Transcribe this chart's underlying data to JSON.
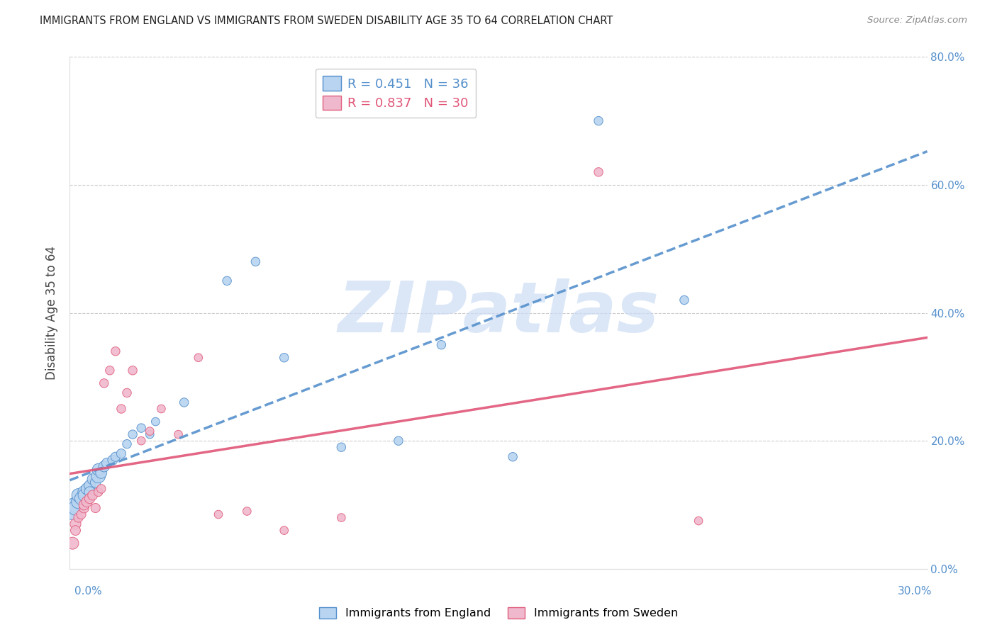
{
  "title": "IMMIGRANTS FROM ENGLAND VS IMMIGRANTS FROM SWEDEN DISABILITY AGE 35 TO 64 CORRELATION CHART",
  "source": "Source: ZipAtlas.com",
  "ylabel_label": "Disability Age 35 to 64",
  "xlim": [
    0.0,
    0.3
  ],
  "ylim": [
    0.0,
    0.8
  ],
  "england_R": 0.451,
  "england_N": 36,
  "sweden_R": 0.837,
  "sweden_N": 30,
  "england_color": "#b8d4f0",
  "sweden_color": "#f0b8cc",
  "england_edge_color": "#5590cc",
  "sweden_edge_color": "#e06080",
  "england_line_color": "#5590cc",
  "sweden_line_color": "#e05578",
  "england_x": [
    0.001,
    0.002,
    0.002,
    0.003,
    0.003,
    0.004,
    0.005,
    0.005,
    0.006,
    0.007,
    0.007,
    0.008,
    0.009,
    0.01,
    0.01,
    0.011,
    0.012,
    0.013,
    0.015,
    0.016,
    0.018,
    0.02,
    0.022,
    0.025,
    0.028,
    0.03,
    0.04,
    0.055,
    0.065,
    0.075,
    0.095,
    0.115,
    0.13,
    0.155,
    0.185,
    0.215
  ],
  "england_y": [
    0.09,
    0.1,
    0.095,
    0.105,
    0.115,
    0.11,
    0.12,
    0.115,
    0.125,
    0.13,
    0.12,
    0.14,
    0.135,
    0.145,
    0.155,
    0.15,
    0.16,
    0.165,
    0.17,
    0.175,
    0.18,
    0.195,
    0.21,
    0.22,
    0.21,
    0.23,
    0.26,
    0.45,
    0.48,
    0.33,
    0.19,
    0.2,
    0.35,
    0.175,
    0.7,
    0.42
  ],
  "england_sizes": [
    300,
    250,
    220,
    200,
    180,
    170,
    160,
    150,
    140,
    130,
    120,
    120,
    110,
    200,
    150,
    130,
    120,
    110,
    100,
    90,
    90,
    80,
    80,
    80,
    70,
    70,
    80,
    80,
    80,
    80,
    80,
    80,
    80,
    80,
    80,
    80
  ],
  "sweden_x": [
    0.001,
    0.002,
    0.002,
    0.003,
    0.004,
    0.005,
    0.005,
    0.006,
    0.007,
    0.008,
    0.009,
    0.01,
    0.011,
    0.012,
    0.014,
    0.016,
    0.018,
    0.02,
    0.022,
    0.025,
    0.028,
    0.032,
    0.038,
    0.045,
    0.052,
    0.062,
    0.075,
    0.095,
    0.185,
    0.22
  ],
  "sweden_y": [
    0.04,
    0.07,
    0.06,
    0.08,
    0.085,
    0.095,
    0.1,
    0.105,
    0.11,
    0.115,
    0.095,
    0.12,
    0.125,
    0.29,
    0.31,
    0.34,
    0.25,
    0.275,
    0.31,
    0.2,
    0.215,
    0.25,
    0.21,
    0.33,
    0.085,
    0.09,
    0.06,
    0.08,
    0.62,
    0.075
  ],
  "sweden_sizes": [
    150,
    120,
    100,
    90,
    90,
    100,
    110,
    120,
    110,
    100,
    90,
    80,
    80,
    80,
    80,
    80,
    80,
    80,
    80,
    70,
    70,
    70,
    70,
    70,
    70,
    70,
    70,
    70,
    80,
    70
  ],
  "watermark_text": "ZIPatlas",
  "watermark_color": "#ccddf5",
  "background_color": "#ffffff",
  "grid_color": "#cccccc",
  "title_color": "#222222",
  "axis_label_color": "#444444",
  "tick_label_color": "#5590cc",
  "legend_label_england": "Immigrants from England",
  "legend_label_sweden": "Immigrants from Sweden",
  "legend_R_england": "R = 0.451",
  "legend_N_england": "N = 36",
  "legend_R_sweden": "R = 0.837",
  "legend_N_sweden": "N = 30"
}
